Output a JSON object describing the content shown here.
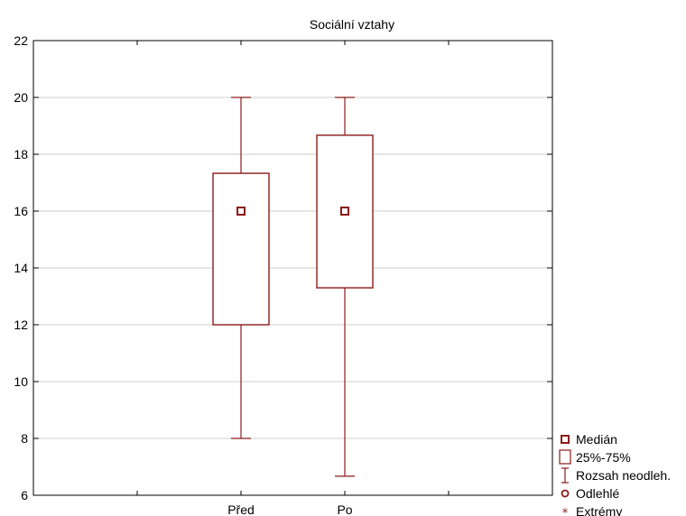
{
  "chart_data": {
    "type": "boxplot",
    "title": "Sociální vztahy",
    "xlabel": "",
    "ylabel": "",
    "categories": [
      "Před",
      "Po"
    ],
    "ylim": [
      6,
      22
    ],
    "yticks": [
      6,
      8,
      10,
      12,
      14,
      16,
      18,
      20,
      22
    ],
    "grid": true,
    "legend_position": "bottom-right",
    "series": [
      {
        "category": "Před",
        "median": 16,
        "q1": 12,
        "q3": 17.33,
        "whisker_low": 8,
        "whisker_high": 20
      },
      {
        "category": "Po",
        "median": 16,
        "q1": 13.3,
        "q3": 18.67,
        "whisker_low": 6.67,
        "whisker_high": 20
      }
    ],
    "legend": [
      {
        "label": "Medián",
        "symbol": "median-square"
      },
      {
        "label": "25%-75%",
        "symbol": "box"
      },
      {
        "label": "Rozsah neodleh.",
        "symbol": "whisker"
      },
      {
        "label": "Odlehlé",
        "symbol": "circle"
      },
      {
        "label": "Extrémy",
        "symbol": "star"
      }
    ],
    "colors": {
      "mark": "#8b1a1a",
      "grid": "#cfcfcf",
      "axis": "#000000"
    }
  }
}
